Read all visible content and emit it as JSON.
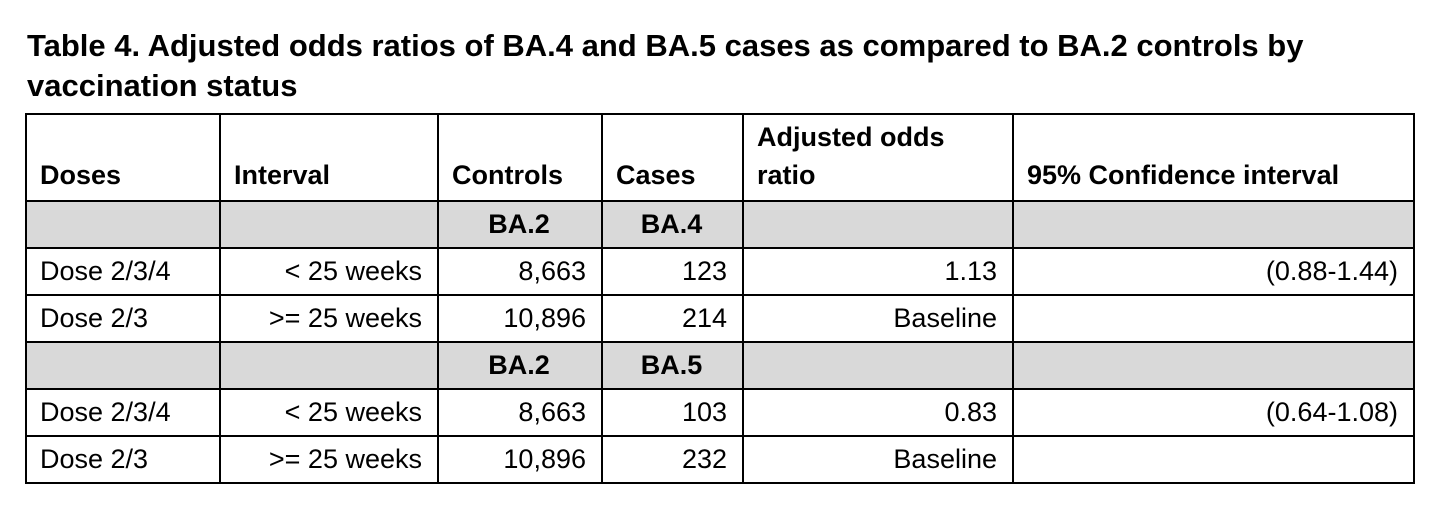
{
  "page": {
    "title_line1": "Table 4. Adjusted odds ratios of BA.4 and BA.5 cases as compared to BA.2 controls by",
    "title_line2": "vaccination status"
  },
  "colors": {
    "page_bg": "#ffffff",
    "text": "#000000",
    "border": "#000000",
    "subheader_bg": "#d9d9d9"
  },
  "table": {
    "columns": [
      {
        "label": "Doses"
      },
      {
        "label": "Interval"
      },
      {
        "label": "Controls"
      },
      {
        "label": "Cases"
      },
      {
        "label": "Adjusted odds ratio"
      },
      {
        "label": "95% Confidence interval"
      }
    ],
    "rows": [
      {
        "type": "subheader",
        "cells": [
          "",
          "",
          "BA.2",
          "BA.4",
          "",
          ""
        ]
      },
      {
        "type": "data",
        "cells": [
          "Dose 2/3/4",
          "< 25 weeks",
          "8,663",
          "123",
          "1.13",
          "(0.88-1.44)"
        ]
      },
      {
        "type": "data",
        "cells": [
          "Dose 2/3",
          ">= 25 weeks",
          "10,896",
          "214",
          "Baseline",
          ""
        ]
      },
      {
        "type": "subheader",
        "cells": [
          "",
          "",
          "BA.2",
          "BA.5",
          "",
          ""
        ]
      },
      {
        "type": "data",
        "cells": [
          "Dose 2/3/4",
          "< 25 weeks",
          "8,663",
          "103",
          "0.83",
          "(0.64-1.08)"
        ]
      },
      {
        "type": "data",
        "cells": [
          "Dose 2/3",
          ">= 25 weeks",
          "10,896",
          "232",
          "Baseline",
          ""
        ]
      }
    ]
  }
}
